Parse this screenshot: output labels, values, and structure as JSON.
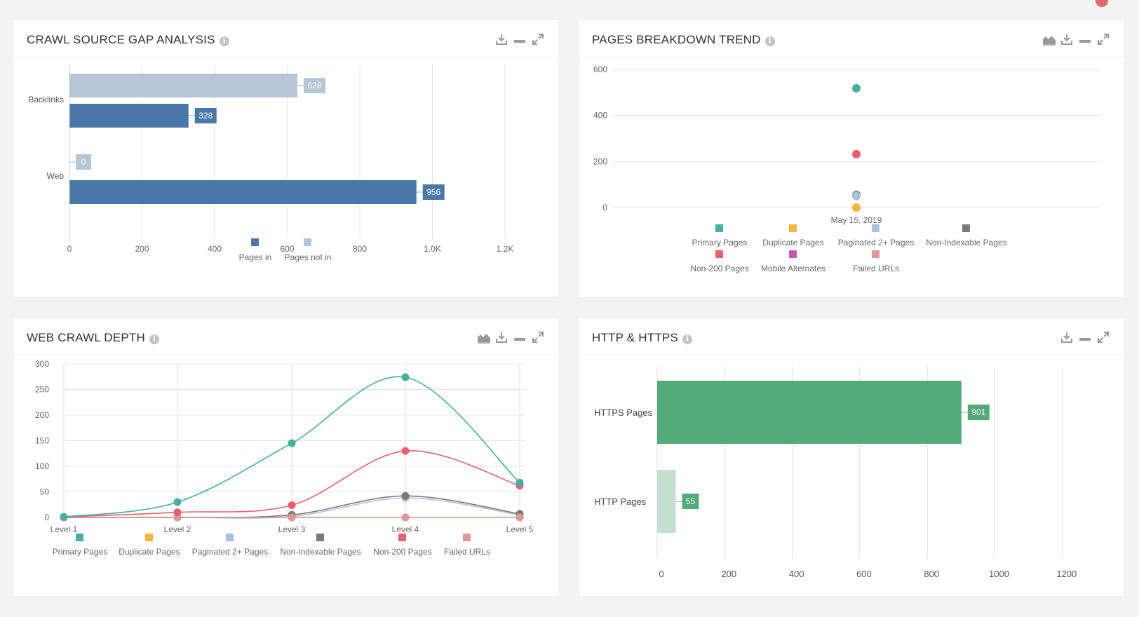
{
  "crawl_gap": {
    "title": "CRAWL SOURCE GAP ANALYSIS",
    "chart_data": {
      "type": "bar",
      "orientation": "horizontal",
      "categories": [
        "Backlinks",
        "Web"
      ],
      "series": [
        {
          "name": "Pages not in",
          "values": [
            628,
            0
          ],
          "color": "#b6c6d4"
        },
        {
          "name": "Pages in",
          "values": [
            328,
            956
          ],
          "color": "#4a78a8"
        }
      ],
      "xlim": [
        0,
        1200
      ],
      "xticks": [
        "0",
        "200",
        "400",
        "600",
        "800",
        "1.0K",
        "1.2K"
      ],
      "legend": [
        "Pages in",
        "Pages not in"
      ]
    }
  },
  "pages_trend": {
    "title": "PAGES BREAKDOWN TREND",
    "chart_data": {
      "type": "scatter",
      "x": [
        "May 15, 2019"
      ],
      "ylim": [
        0,
        600
      ],
      "yticks": [
        "600",
        "400",
        "200",
        "0"
      ],
      "series": [
        {
          "name": "Primary Pages",
          "values": [
            518
          ],
          "color": "#45b09f"
        },
        {
          "name": "Duplicate Pages",
          "values": [
            0
          ],
          "color": "#f3b73b"
        },
        {
          "name": "Paginated 2+ Pages",
          "values": [
            50
          ],
          "color": "#a9c0dc"
        },
        {
          "name": "Non-Indexable Pages",
          "values": [
            55
          ],
          "color": "#7a7a7a"
        },
        {
          "name": "Non-200 Pages",
          "values": [
            232
          ],
          "color": "#e8606e"
        },
        {
          "name": "Mobile Alternates",
          "values": [
            0
          ],
          "color": "#c259b5"
        },
        {
          "name": "Failed URLs",
          "values": [
            0
          ],
          "color": "#dd9999"
        }
      ]
    }
  },
  "crawl_depth": {
    "title": "WEB CRAWL DEPTH",
    "chart_data": {
      "type": "line",
      "categories": [
        "Level 1",
        "Level 2",
        "Level 3",
        "Level 4",
        "Level 5"
      ],
      "ylim": [
        0,
        300
      ],
      "yticks": [
        "300",
        "250",
        "200",
        "150",
        "100",
        "50",
        "0"
      ],
      "series": [
        {
          "name": "Primary Pages",
          "values": [
            1,
            30,
            145,
            274,
            68
          ],
          "color": "#45b09f"
        },
        {
          "name": "Duplicate Pages",
          "values": [
            0,
            0,
            0,
            0,
            0
          ],
          "color": "#f3b73b"
        },
        {
          "name": "Paginated 2+ Pages",
          "values": [
            0,
            0,
            2,
            38,
            5
          ],
          "color": "#a9c0dc"
        },
        {
          "name": "Non-Indexable Pages",
          "values": [
            0,
            0,
            5,
            42,
            7
          ],
          "color": "#7a7a7a"
        },
        {
          "name": "Non-200 Pages",
          "values": [
            1,
            10,
            24,
            130,
            62
          ],
          "color": "#e8606e"
        },
        {
          "name": "Failed URLs",
          "values": [
            0,
            0,
            0,
            0,
            0
          ],
          "color": "#dd9999"
        }
      ]
    }
  },
  "http": {
    "title": "HTTP & HTTPS",
    "chart_data": {
      "type": "bar",
      "orientation": "horizontal",
      "categories": [
        "HTTPS Pages",
        "HTTP Pages"
      ],
      "values": [
        901,
        55
      ],
      "colors": [
        "#52ab78",
        "#c5e0d0"
      ],
      "label_color": "#52ab78",
      "xlim": [
        0,
        1200
      ],
      "xticks": [
        "0",
        "200",
        "400",
        "600",
        "800",
        "1000",
        "1200"
      ]
    }
  }
}
